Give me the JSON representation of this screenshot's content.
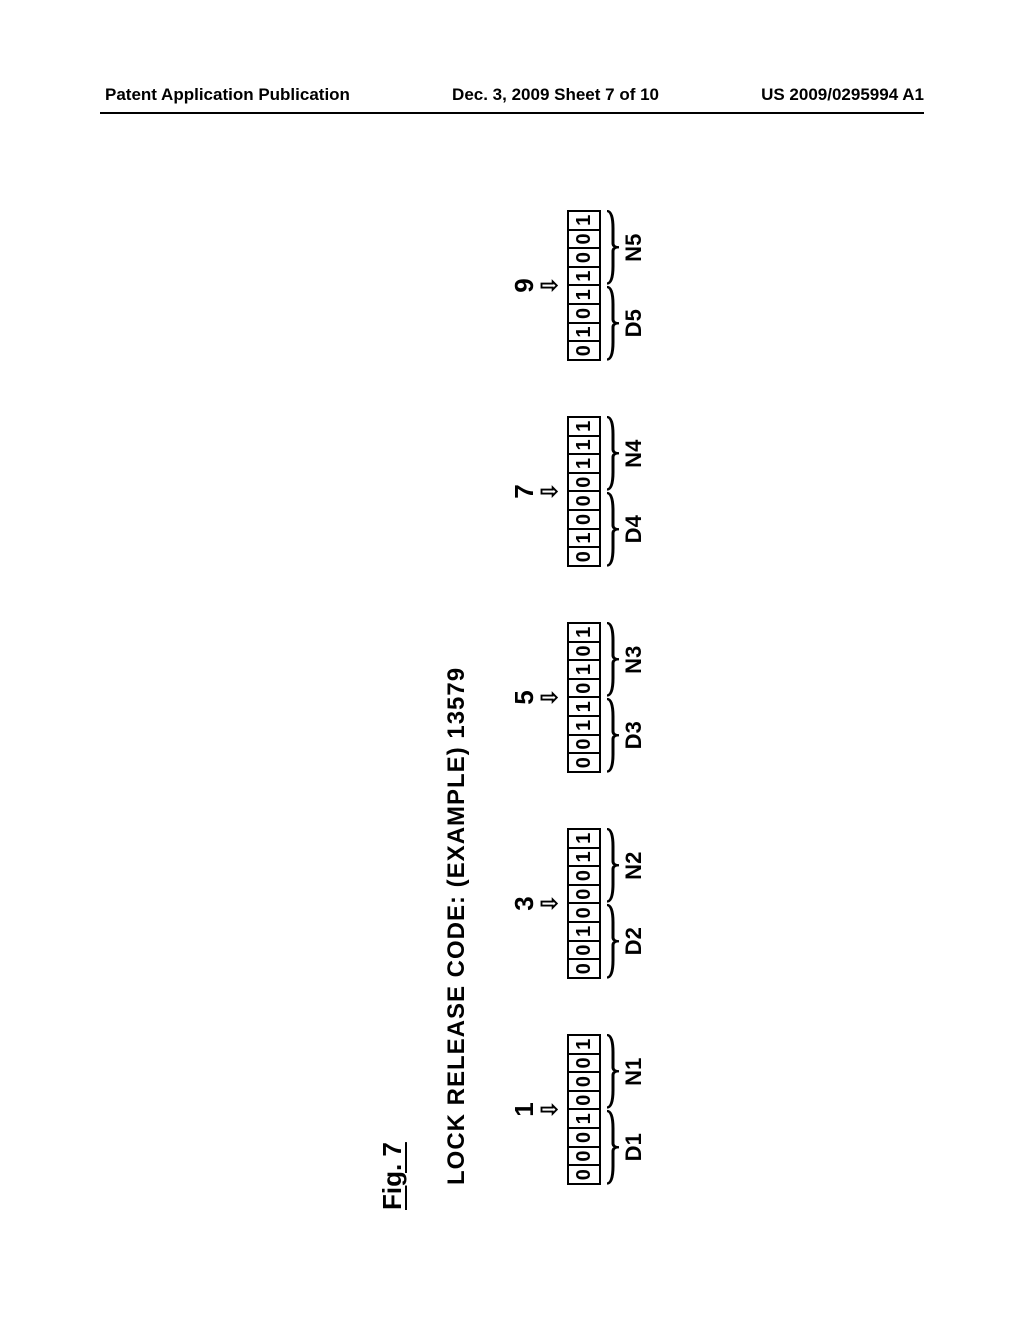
{
  "header": {
    "left": "Patent Application Publication",
    "center": "Dec. 3, 2009  Sheet 7 of 10",
    "right": "US 2009/0295994 A1"
  },
  "figure": {
    "label": "Fig. 7",
    "title": "LOCK RELEASE CODE: (EXAMPLE) 13579"
  },
  "groups": [
    {
      "digit": "1",
      "bits": [
        "0",
        "0",
        "0",
        "1",
        "0",
        "0",
        "0",
        "1"
      ],
      "left_label": "D1",
      "right_label": "N1"
    },
    {
      "digit": "3",
      "bits": [
        "0",
        "0",
        "1",
        "0",
        "0",
        "0",
        "1",
        "1"
      ],
      "left_label": "D2",
      "right_label": "N2"
    },
    {
      "digit": "5",
      "bits": [
        "0",
        "0",
        "1",
        "1",
        "0",
        "1",
        "0",
        "1"
      ],
      "left_label": "D3",
      "right_label": "N3"
    },
    {
      "digit": "7",
      "bits": [
        "0",
        "1",
        "0",
        "0",
        "0",
        "1",
        "1",
        "1"
      ],
      "left_label": "D4",
      "right_label": "N4"
    },
    {
      "digit": "9",
      "bits": [
        "0",
        "1",
        "0",
        "1",
        "1",
        "0",
        "0",
        "1"
      ],
      "left_label": "D5",
      "right_label": "N5"
    }
  ],
  "style": {
    "page_bg": "#ffffff",
    "text_color": "#000000",
    "border_color": "#000000",
    "arrow_glyph": "⇩"
  }
}
